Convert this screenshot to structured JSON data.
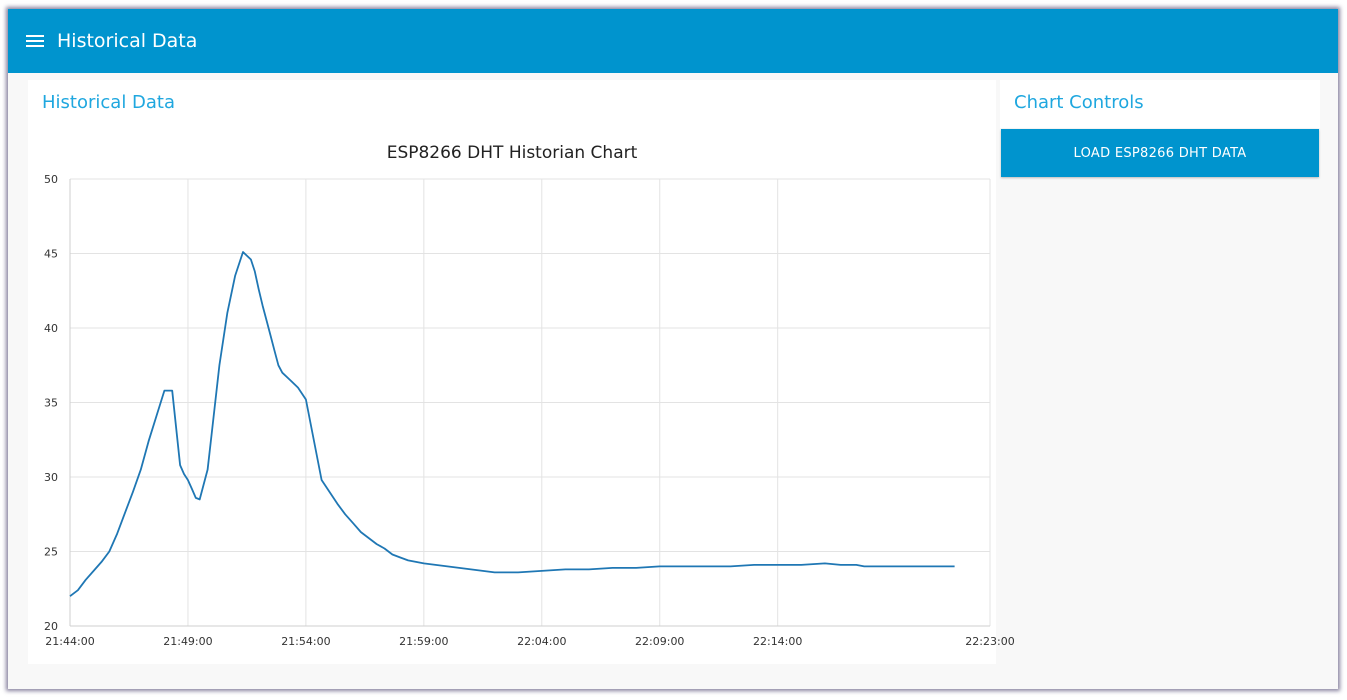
{
  "header": {
    "title": "Historical Data",
    "menu_icon": "hamburger-menu-icon"
  },
  "historical_card": {
    "title": "Historical Data"
  },
  "controls_card": {
    "title": "Chart Controls",
    "load_button_label": "LOAD ESP8266 DHT DATA"
  },
  "colors": {
    "header_bg": "#0094ce",
    "accent_text": "#1fa7df",
    "series_line": "#1f77b4"
  },
  "chart_data": {
    "type": "line",
    "title": "ESP8266 DHT Historian Chart",
    "xlabel": "",
    "ylabel": "",
    "ylim": [
      20,
      50
    ],
    "y_ticks": [
      20,
      25,
      30,
      35,
      40,
      45,
      50
    ],
    "xlim": [
      "21:44:00",
      "22:23:00"
    ],
    "x_ticks": [
      "21:44:00",
      "21:49:00",
      "21:54:00",
      "21:59:00",
      "22:04:00",
      "22:09:00",
      "22:14:00",
      "22:23:00"
    ],
    "grid": true,
    "legend": false,
    "series": [
      {
        "x": [
          "21:44:00",
          "21:44:20",
          "21:44:40",
          "21:45:00",
          "21:45:20",
          "21:45:40",
          "21:46:00",
          "21:46:20",
          "21:46:40",
          "21:47:00",
          "21:47:20",
          "21:47:40",
          "21:48:00",
          "21:48:20",
          "21:48:40",
          "21:48:50",
          "21:49:00",
          "21:49:10",
          "21:49:20",
          "21:49:30",
          "21:49:50",
          "21:50:00",
          "21:50:20",
          "21:50:40",
          "21:51:00",
          "21:51:20",
          "21:51:40",
          "21:51:50",
          "21:52:00",
          "21:52:10",
          "21:52:20",
          "21:52:30",
          "21:52:40",
          "21:52:50",
          "21:53:00",
          "21:53:20",
          "21:53:40",
          "21:54:00",
          "21:54:40",
          "21:55:00",
          "21:55:20",
          "21:55:40",
          "21:55:50",
          "21:56:00",
          "21:56:20",
          "21:56:40",
          "21:57:00",
          "21:57:20",
          "21:57:40",
          "21:58:00",
          "21:58:20",
          "21:58:40",
          "21:59:00",
          "21:59:30",
          "22:00:00",
          "22:00:30",
          "22:01:00",
          "22:01:30",
          "22:02:00",
          "22:02:30",
          "22:03:00",
          "22:04:00",
          "22:05:00",
          "22:06:00",
          "22:07:00",
          "22:08:00",
          "22:09:00",
          "22:10:00",
          "22:11:00",
          "22:12:00",
          "22:13:00",
          "22:14:00",
          "22:15:00",
          "22:16:00",
          "22:16:40",
          "22:17:00",
          "22:17:20",
          "22:17:40",
          "22:18:00",
          "22:18:40",
          "22:19:00",
          "22:20:00",
          "22:21:00",
          "22:21:10",
          "22:21:30"
        ],
        "values": [
          22.0,
          22.4,
          23.1,
          23.7,
          24.3,
          25.0,
          26.2,
          27.6,
          29.0,
          30.5,
          32.4,
          34.1,
          35.8,
          35.8,
          30.8,
          30.2,
          29.8,
          29.2,
          28.6,
          28.5,
          30.5,
          32.8,
          37.5,
          41.0,
          43.5,
          45.1,
          44.6,
          43.8,
          42.6,
          41.5,
          40.5,
          39.5,
          38.5,
          37.5,
          37.0,
          36.5,
          36.0,
          35.2,
          29.8,
          29.0,
          28.2,
          27.5,
          27.2,
          26.9,
          26.3,
          25.9,
          25.5,
          25.2,
          24.8,
          24.6,
          24.4,
          24.3,
          24.2,
          24.1,
          24.0,
          23.9,
          23.8,
          23.7,
          23.6,
          23.6,
          23.6,
          23.7,
          23.8,
          23.8,
          23.9,
          23.9,
          24.0,
          24.0,
          24.0,
          24.0,
          24.1,
          24.1,
          24.1,
          24.2,
          24.1,
          24.1,
          24.1,
          24.0,
          24.0,
          24.0,
          24.0,
          24.0,
          24.0,
          24.0,
          24.0
        ]
      }
    ]
  }
}
